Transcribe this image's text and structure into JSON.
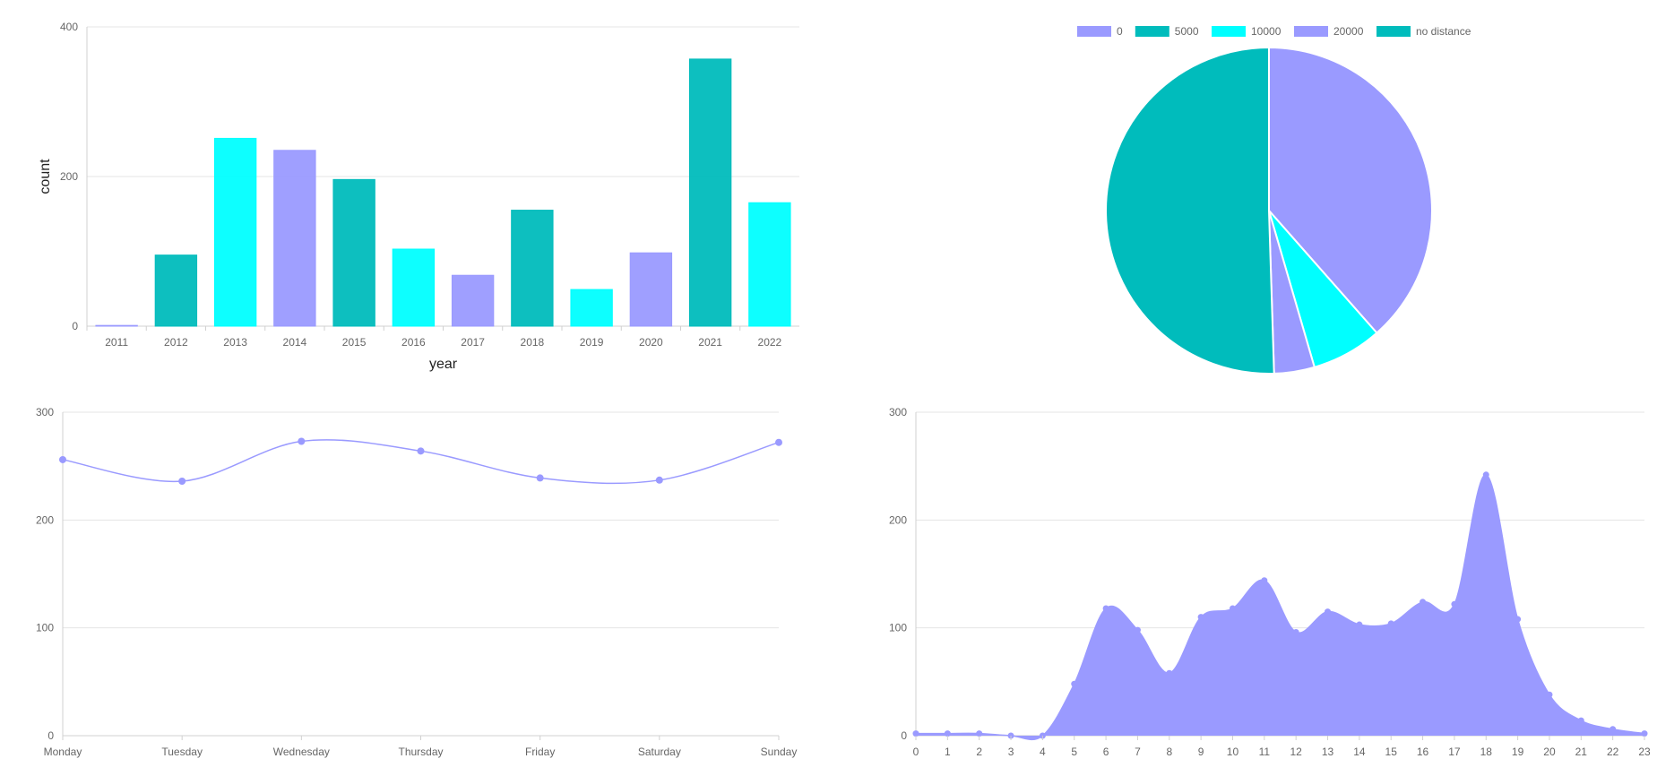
{
  "chart_data": [
    {
      "type": "bar",
      "xlabel": "year",
      "ylabel": "count",
      "ylim": [
        0,
        400
      ],
      "yticks": [
        0,
        200,
        400
      ],
      "categories": [
        "2011",
        "2012",
        "2013",
        "2014",
        "2015",
        "2016",
        "2017",
        "2018",
        "2019",
        "2020",
        "2021",
        "2022"
      ],
      "values": [
        1,
        95,
        251,
        235,
        196,
        103,
        68,
        155,
        49,
        98,
        357,
        165
      ],
      "colors": [
        "#9a9aff",
        "#00bcbc",
        "#00ffff",
        "#9a9aff",
        "#00bcbc",
        "#00ffff",
        "#9a9aff",
        "#00bcbc",
        "#00ffff",
        "#9a9aff",
        "#00bcbc",
        "#00ffff"
      ],
      "grid": true
    },
    {
      "type": "pie",
      "legend_position": "top",
      "labels": [
        "0",
        "5000",
        "10000",
        "20000",
        "no distance"
      ],
      "values": [
        38.5,
        0,
        7.0,
        4.0,
        50.5
      ],
      "colors": [
        "#9a9aff",
        "#00bcbc",
        "#00ffff",
        "#9a9aff",
        "#00bcbc"
      ]
    },
    {
      "type": "line",
      "ylim": [
        0,
        300
      ],
      "yticks": [
        0,
        100,
        200,
        300
      ],
      "categories": [
        "Monday",
        "Tuesday",
        "Wednesday",
        "Thursday",
        "Friday",
        "Saturday",
        "Sunday"
      ],
      "values": [
        256,
        236,
        273,
        264,
        239,
        237,
        272
      ],
      "color": "#9a9aff",
      "grid": true
    },
    {
      "type": "area",
      "ylim": [
        0,
        300
      ],
      "yticks": [
        0,
        100,
        200,
        300
      ],
      "categories": [
        "0",
        "1",
        "2",
        "3",
        "4",
        "5",
        "6",
        "7",
        "8",
        "9",
        "10",
        "11",
        "12",
        "13",
        "14",
        "15",
        "16",
        "17",
        "18",
        "19",
        "20",
        "21",
        "22",
        "23"
      ],
      "values": [
        2,
        2,
        2,
        0,
        0,
        48,
        118,
        98,
        58,
        110,
        118,
        144,
        96,
        115,
        103,
        104,
        124,
        122,
        242,
        108,
        38,
        14,
        6,
        2
      ],
      "color": "#9a9aff",
      "grid": true
    }
  ]
}
